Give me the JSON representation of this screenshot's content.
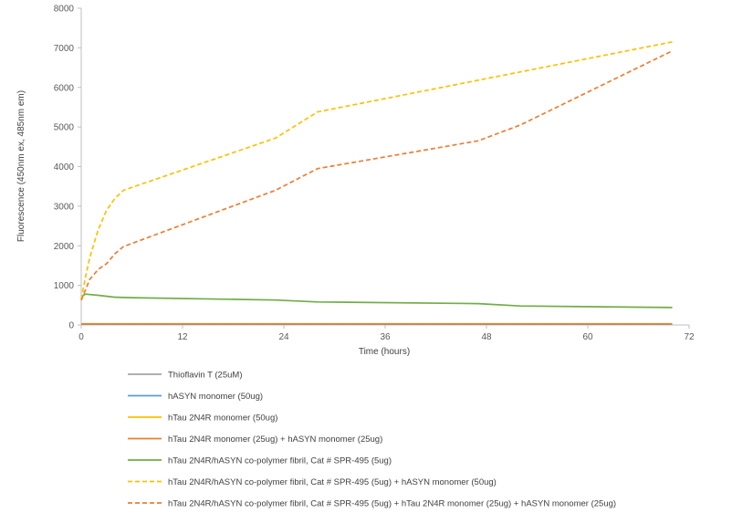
{
  "chart_data": {
    "type": "line",
    "xlabel": "Time (hours)",
    "ylabel": "Fluorescence (450nm ex, 485nm em)",
    "xlim": [
      0,
      72
    ],
    "ylim": [
      0,
      8000
    ],
    "xticks": [
      0,
      12,
      24,
      36,
      48,
      60,
      72
    ],
    "yticks": [
      0,
      1000,
      2000,
      3000,
      4000,
      5000,
      6000,
      7000,
      8000
    ],
    "grid": false,
    "legend_position": "bottom",
    "series": [
      {
        "name": "Thioflavin T (25uM)",
        "color": "#a5a5a5",
        "dash": "solid",
        "points": [
          [
            0,
            20
          ],
          [
            70,
            20
          ]
        ]
      },
      {
        "name": "hASYN monomer (50ug)",
        "color": "#5b9bd5",
        "dash": "solid",
        "points": [
          [
            0,
            25
          ],
          [
            70,
            25
          ]
        ]
      },
      {
        "name": "hTau 2N4R monomer (50ug)",
        "color": "#ffc000",
        "dash": "solid",
        "points": [
          [
            0,
            30
          ],
          [
            70,
            30
          ]
        ]
      },
      {
        "name": "hTau 2N4R monomer (25ug) + hASYN monomer (25ug)",
        "color": "#ed7d31",
        "dash": "solid",
        "points": [
          [
            0,
            28
          ],
          [
            70,
            28
          ]
        ]
      },
      {
        "name": "hTau 2N4R/hASYN co-polymer fibril, Cat # SPR-495 (5ug)",
        "color": "#70ad47",
        "dash": "solid",
        "points": [
          [
            0,
            720
          ],
          [
            0.5,
            780
          ],
          [
            2,
            750
          ],
          [
            4,
            700
          ],
          [
            6,
            690
          ],
          [
            23,
            630
          ],
          [
            28,
            580
          ],
          [
            47,
            540
          ],
          [
            52,
            480
          ],
          [
            70,
            440
          ]
        ]
      },
      {
        "name": "hTau 2N4R/hASYN co-polymer fibril, Cat # SPR-495 (5ug) + hASYN monomer (50ug)",
        "color": "#ffc000",
        "dash": "dashed",
        "points": [
          [
            0,
            650
          ],
          [
            0.5,
            1200
          ],
          [
            1,
            1700
          ],
          [
            2,
            2400
          ],
          [
            3,
            2900
          ],
          [
            4,
            3200
          ],
          [
            5,
            3400
          ],
          [
            23,
            4720
          ],
          [
            28,
            5380
          ],
          [
            52,
            6390
          ],
          [
            70,
            7150
          ]
        ]
      },
      {
        "name": "hTau 2N4R/hASYN co-polymer fibril, Cat # SPR-495 (5ug) + hTau 2N4R monomer (25ug) + hASYN monomer (25ug)",
        "color": "#ed7d31",
        "dash": "dashed",
        "points": [
          [
            0,
            620
          ],
          [
            1,
            1150
          ],
          [
            2,
            1400
          ],
          [
            3,
            1550
          ],
          [
            4,
            1800
          ],
          [
            5,
            1980
          ],
          [
            23,
            3400
          ],
          [
            28,
            3950
          ],
          [
            47,
            4650
          ],
          [
            52,
            5050
          ],
          [
            70,
            6920
          ]
        ]
      }
    ]
  }
}
